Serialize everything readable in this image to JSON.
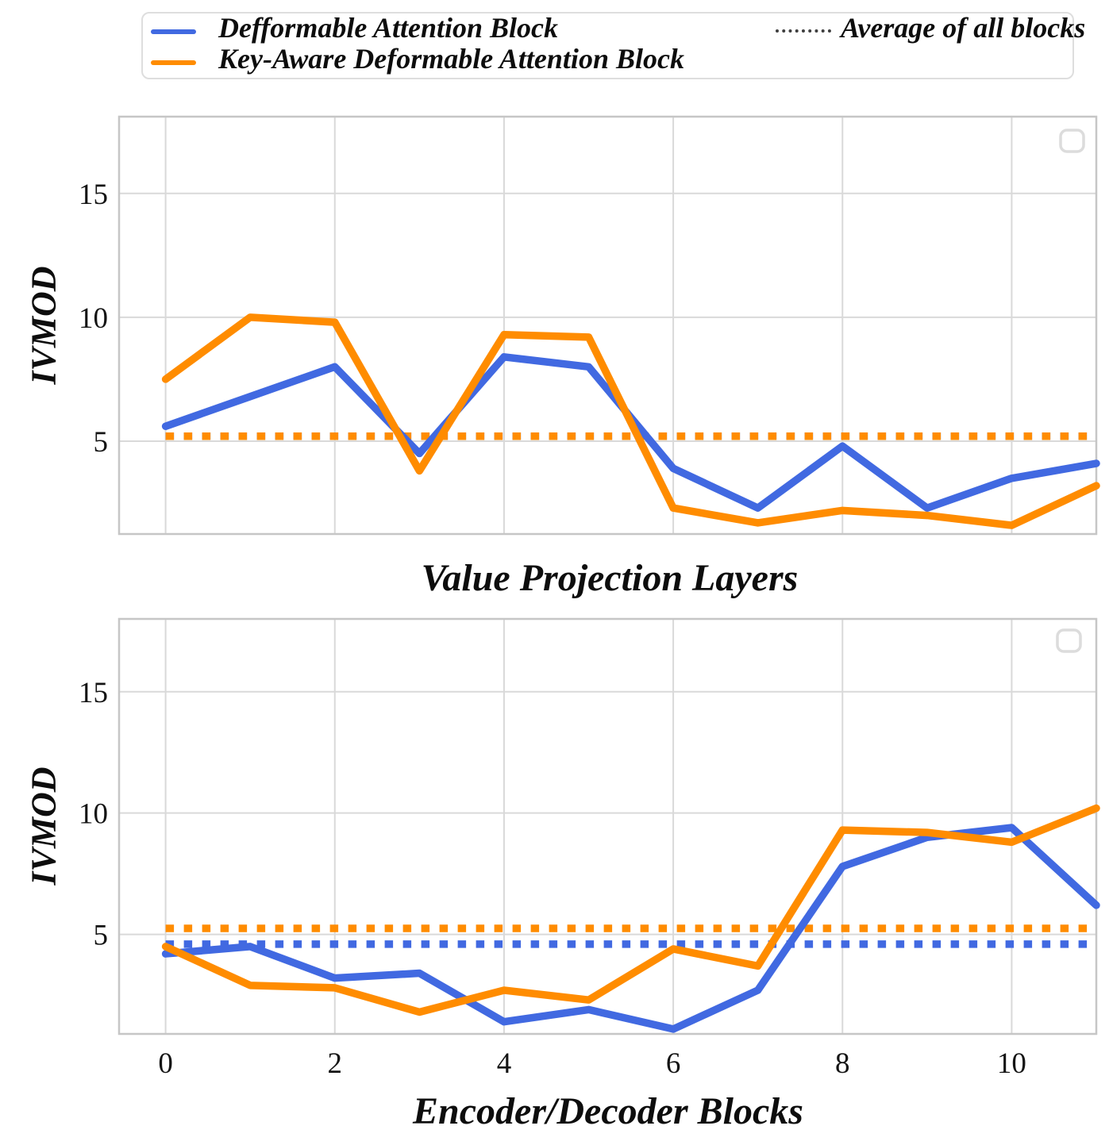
{
  "figure": {
    "legend": {
      "items": [
        {
          "label": "Defformable Attention Block",
          "color": "#4169E1",
          "line_style": "solid"
        },
        {
          "label": "Key-Aware Deformable Attention Block",
          "color": "#FF8C00",
          "line_style": "solid"
        },
        {
          "label": "Average of all blocks",
          "color": "#3F3F3F",
          "line_style": "dotted"
        }
      ]
    },
    "colors": {
      "blue_series": "#4169E1",
      "orange_series": "#FF8C00",
      "grid": "#D9D9D9",
      "spine": "#C6C6C6"
    }
  },
  "chart_data": [
    {
      "type": "line",
      "xlabel": "Value Projection Layers",
      "ylabel": "IVMOD",
      "x": [
        0,
        1,
        2,
        3,
        4,
        5,
        6,
        7,
        8,
        9,
        10,
        11
      ],
      "series": [
        {
          "name": "Defformable Attention Block",
          "color": "#4169E1",
          "values": [
            5.6,
            6.8,
            8.0,
            4.5,
            8.4,
            8.0,
            3.9,
            2.3,
            4.8,
            2.3,
            3.5,
            4.1
          ]
        },
        {
          "name": "Key-Aware Deformable Attention Block",
          "color": "#FF8C00",
          "values": [
            7.5,
            10.0,
            9.8,
            3.8,
            9.3,
            9.2,
            2.3,
            1.7,
            2.2,
            2.0,
            1.6,
            3.2
          ]
        }
      ],
      "averages": [
        {
          "name": "Average of all blocks (Defformable)",
          "color": "#4169E1",
          "value": 5.2
        },
        {
          "name": "Average of all blocks (Key-Aware)",
          "color": "#FF8C00",
          "value": 5.2
        }
      ],
      "xticks": [
        0,
        2,
        4,
        6,
        8,
        10
      ],
      "xticklabels": [],
      "yticks": [
        5,
        10,
        15
      ],
      "yticklabels": [
        "5",
        "10",
        "15"
      ],
      "xlim": [
        -0.55,
        11
      ],
      "ylim": [
        1.25,
        18.1
      ],
      "grid": true,
      "legend_position": "upper-right-empty-box"
    },
    {
      "type": "line",
      "xlabel": "Encoder/Decoder Blocks",
      "ylabel": "IVMOD",
      "x": [
        0,
        1,
        2,
        3,
        4,
        5,
        6,
        7,
        8,
        9,
        10,
        11
      ],
      "series": [
        {
          "name": "Defformable Attention Block",
          "color": "#4169E1",
          "values": [
            4.2,
            4.5,
            3.2,
            3.4,
            1.4,
            1.9,
            1.1,
            2.7,
            7.8,
            9.0,
            9.4,
            6.2
          ]
        },
        {
          "name": "Key-Aware Deformable Attention Block",
          "color": "#FF8C00",
          "values": [
            4.5,
            2.9,
            2.8,
            1.8,
            2.7,
            2.3,
            4.4,
            3.7,
            9.3,
            9.2,
            8.8,
            10.2
          ]
        }
      ],
      "averages": [
        {
          "name": "Average of all blocks (Defformable)",
          "color": "#4169E1",
          "value": 4.6
        },
        {
          "name": "Average of all blocks (Key-Aware)",
          "color": "#FF8C00",
          "value": 5.25
        }
      ],
      "xticks": [
        0,
        2,
        4,
        6,
        8,
        10
      ],
      "xticklabels": [
        "0",
        "2",
        "4",
        "6",
        "8",
        "10"
      ],
      "yticks": [
        5,
        10,
        15
      ],
      "yticklabels": [
        "5",
        "10",
        "15"
      ],
      "xlim": [
        -0.55,
        11
      ],
      "ylim": [
        0.9,
        18.0
      ],
      "grid": true,
      "legend_position": "upper-right-empty-box"
    }
  ]
}
